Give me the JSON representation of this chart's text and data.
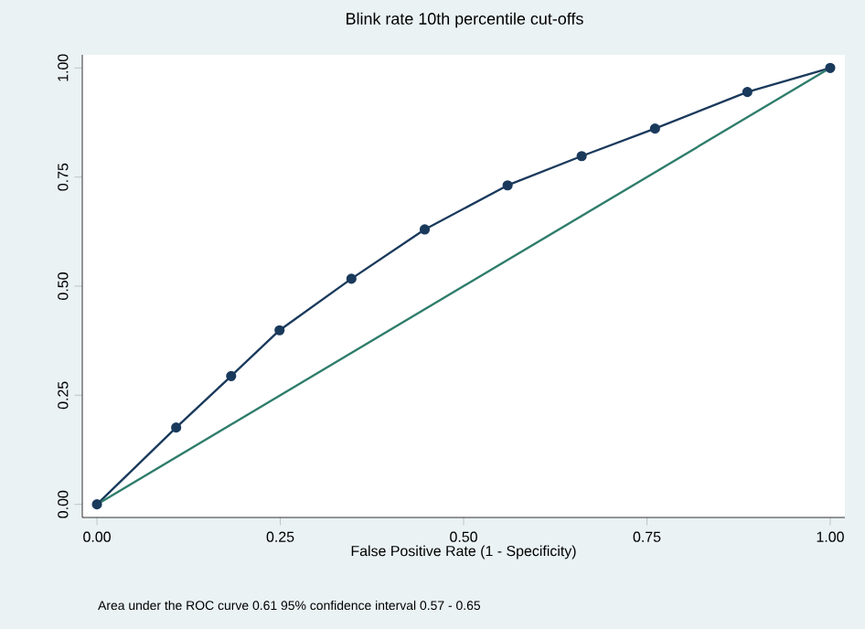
{
  "chart_data": {
    "type": "line",
    "title": "Blink rate 10th percentile cut-offs",
    "xlabel": "False Positive Rate (1 - Specificity)",
    "annotations": [
      "Area under the ROC curve 0.61 95% confidence interval 0.57 - 0.65"
    ],
    "series": [
      {
        "x": [
          0,
          0.108,
          0.183,
          0.249,
          0.347,
          0.447,
          0.56,
          0.661,
          0.761,
          0.887,
          1
        ],
        "values": [
          0,
          0.176,
          0.294,
          0.399,
          0.517,
          0.63,
          0.731,
          0.798,
          0.861,
          0.945,
          1
        ],
        "color": "#1a3a5c",
        "marker": "circle"
      },
      {
        "x": [
          0,
          1
        ],
        "values": [
          0,
          1
        ],
        "color": "#2e7d6b",
        "marker": "none"
      }
    ],
    "xlim": [
      -0.02,
      1.02
    ],
    "ylim": [
      -0.03,
      1.03
    ],
    "xticks": [
      {
        "value": 0,
        "label": "0.00"
      },
      {
        "value": 0.25,
        "label": "0.25"
      },
      {
        "value": 0.5,
        "label": "0.50"
      },
      {
        "value": 0.75,
        "label": "0.75"
      },
      {
        "value": 1,
        "label": "1.00"
      }
    ],
    "yticks": [
      {
        "value": 0,
        "label": "0.00"
      },
      {
        "value": 0.25,
        "label": "0.25"
      },
      {
        "value": 0.5,
        "label": "0.50"
      },
      {
        "value": 0.75,
        "label": "0.75"
      },
      {
        "value": 1,
        "label": "1.00"
      }
    ],
    "grid": false
  }
}
